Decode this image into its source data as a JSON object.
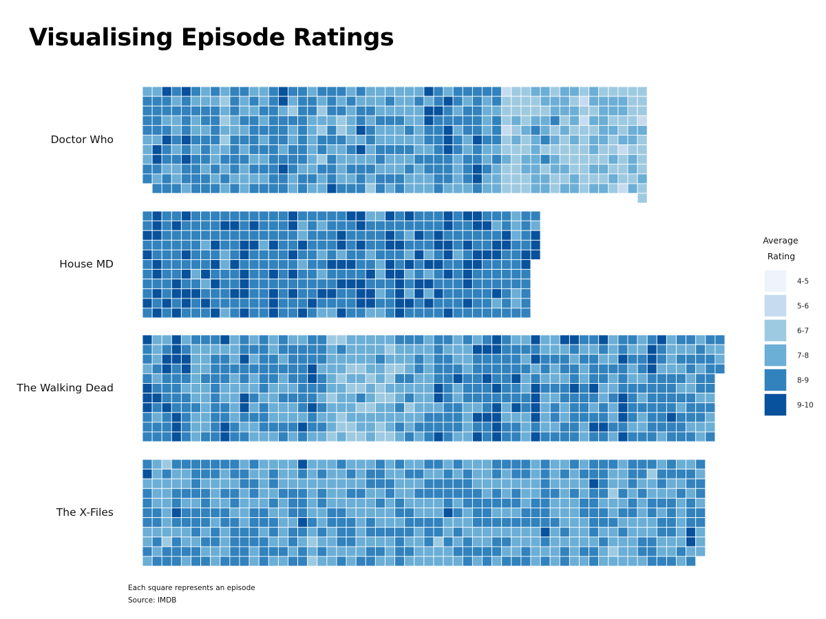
{
  "title": "Visualising Episode Ratings",
  "notes": {
    "caption": "Each square represents an episode",
    "source": "Source: IMDB"
  },
  "chart_data": {
    "type": "heatmap",
    "title": "Visualising Episode Ratings",
    "value_unit": "Average Rating (binned)",
    "shows": [
      {
        "name": "Doctor Who",
        "column_episode_counts": [
          10,
          11,
          11,
          11,
          11,
          11,
          11,
          11,
          11,
          11,
          11,
          11,
          11,
          11,
          11,
          11,
          11,
          11,
          11,
          11,
          11,
          11,
          11,
          11,
          11,
          11,
          11,
          11,
          11,
          11,
          11,
          11,
          11,
          11,
          11,
          11,
          11,
          11,
          11,
          11,
          11,
          11,
          11,
          11,
          11,
          11,
          11,
          11,
          11,
          11,
          11,
          12
        ],
        "bins": "seeded-estimate"
      },
      {
        "name": "House MD",
        "column_episode_counts": [
          11,
          11,
          11,
          11,
          11,
          11,
          11,
          11,
          11,
          11,
          11,
          11,
          11,
          11,
          11,
          11,
          11,
          11,
          11,
          11,
          11,
          11,
          11,
          11,
          11,
          11,
          11,
          11,
          11,
          11,
          11,
          11,
          11,
          11,
          11,
          11,
          11,
          11,
          11,
          11,
          5
        ],
        "bins": "seeded-estimate"
      },
      {
        "name": "The Walking Dead",
        "column_episode_counts": [
          11,
          11,
          11,
          11,
          11,
          11,
          11,
          11,
          11,
          11,
          11,
          11,
          11,
          11,
          11,
          11,
          11,
          11,
          11,
          11,
          11,
          11,
          11,
          11,
          11,
          11,
          11,
          11,
          11,
          11,
          11,
          11,
          11,
          11,
          11,
          11,
          11,
          11,
          11,
          11,
          11,
          11,
          11,
          11,
          11,
          11,
          11,
          11,
          11,
          11,
          11,
          11,
          11,
          11,
          11,
          11,
          11,
          11,
          11,
          4
        ],
        "bins": "seeded-estimate"
      },
      {
        "name": "The X-Files",
        "column_episode_counts": [
          11,
          11,
          11,
          11,
          11,
          11,
          11,
          11,
          11,
          11,
          11,
          11,
          11,
          11,
          11,
          11,
          11,
          11,
          11,
          11,
          11,
          11,
          11,
          11,
          11,
          11,
          11,
          11,
          11,
          11,
          11,
          11,
          11,
          11,
          11,
          11,
          11,
          11,
          11,
          11,
          11,
          11,
          11,
          11,
          11,
          11,
          11,
          11,
          11,
          11,
          11,
          11,
          11,
          11,
          11,
          11,
          11,
          10
        ],
        "bins": "seeded-estimate"
      }
    ],
    "legend": {
      "title_line1": "Average",
      "title_line2": "Rating",
      "placement": "right",
      "bins": [
        {
          "label": "4-5",
          "color": "#eef3fc"
        },
        {
          "label": "5-6",
          "color": "#c6dbef"
        },
        {
          "label": "6-7",
          "color": "#9ecae1"
        },
        {
          "label": "7-8",
          "color": "#6baed6"
        },
        {
          "label": "8-9",
          "color": "#3182bd"
        },
        {
          "label": "9-10",
          "color": "#08519c"
        }
      ]
    }
  }
}
